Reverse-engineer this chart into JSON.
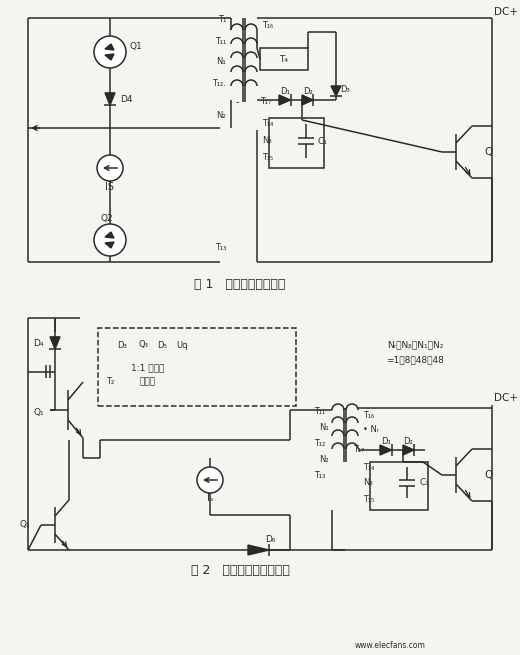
{
  "fig_width": 5.2,
  "fig_height": 6.55,
  "dpi": 100,
  "bg_color": "#f5f5f0",
  "line_color": "#2a2a2a",
  "fig1_caption": "图 1   原抗饱和驱动电路",
  "fig2_caption": "图 2   新型驱动电路原理图",
  "watermark": "www.elecfans.com",
  "dc_plus": "DC+"
}
